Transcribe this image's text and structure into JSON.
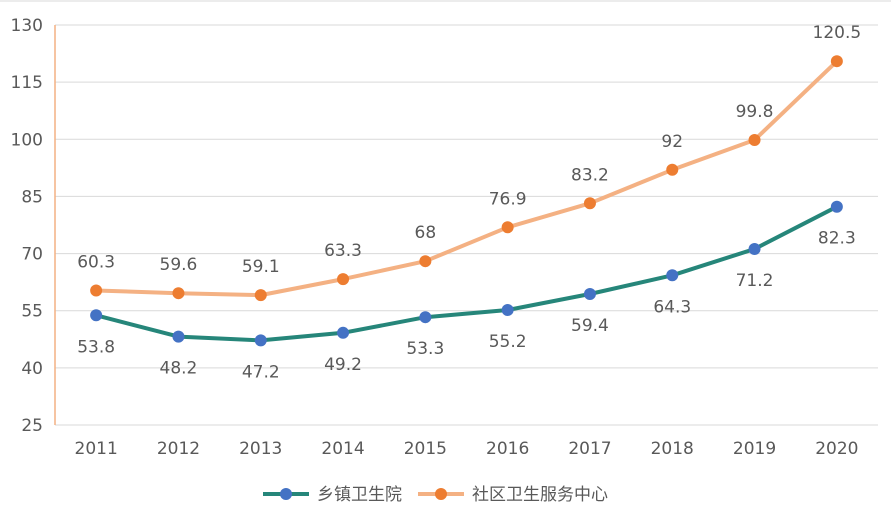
{
  "chart_data": {
    "type": "line",
    "title": "",
    "xlabel": "",
    "ylabel": "",
    "categories": [
      "2011",
      "2012",
      "2013",
      "2014",
      "2015",
      "2016",
      "2017",
      "2018",
      "2019",
      "2020"
    ],
    "ylim": [
      25,
      130
    ],
    "yticks": [
      25,
      40,
      55,
      70,
      85,
      100,
      115,
      130
    ],
    "grid": true,
    "legend_position": "bottom",
    "series": [
      {
        "name": "乡镇卫生院",
        "values": [
          53.8,
          48.2,
          47.2,
          49.2,
          53.3,
          55.2,
          59.4,
          64.3,
          71.2,
          82.3
        ],
        "labels": [
          "53.8",
          "48.2",
          "47.2",
          "49.2",
          "53.3",
          "55.2",
          "59.4",
          "64.3",
          "71.2",
          "82.3"
        ],
        "line_color": "#26867a",
        "marker_color": "#4472c4",
        "label_position": "below"
      },
      {
        "name": "社区卫生服务中心",
        "values": [
          60.3,
          59.6,
          59.1,
          63.3,
          68,
          76.9,
          83.2,
          92,
          99.8,
          120.5
        ],
        "labels": [
          "60.3",
          "59.6",
          "59.1",
          "63.3",
          "68",
          "76.9",
          "83.2",
          "92",
          "99.8",
          "120.5"
        ],
        "line_color": "#f4b183",
        "marker_color": "#ed7d31",
        "label_position": "above"
      }
    ],
    "colors": {
      "grid": "#d9d9d9",
      "axis": "#f4b183",
      "text": "#595959"
    }
  }
}
